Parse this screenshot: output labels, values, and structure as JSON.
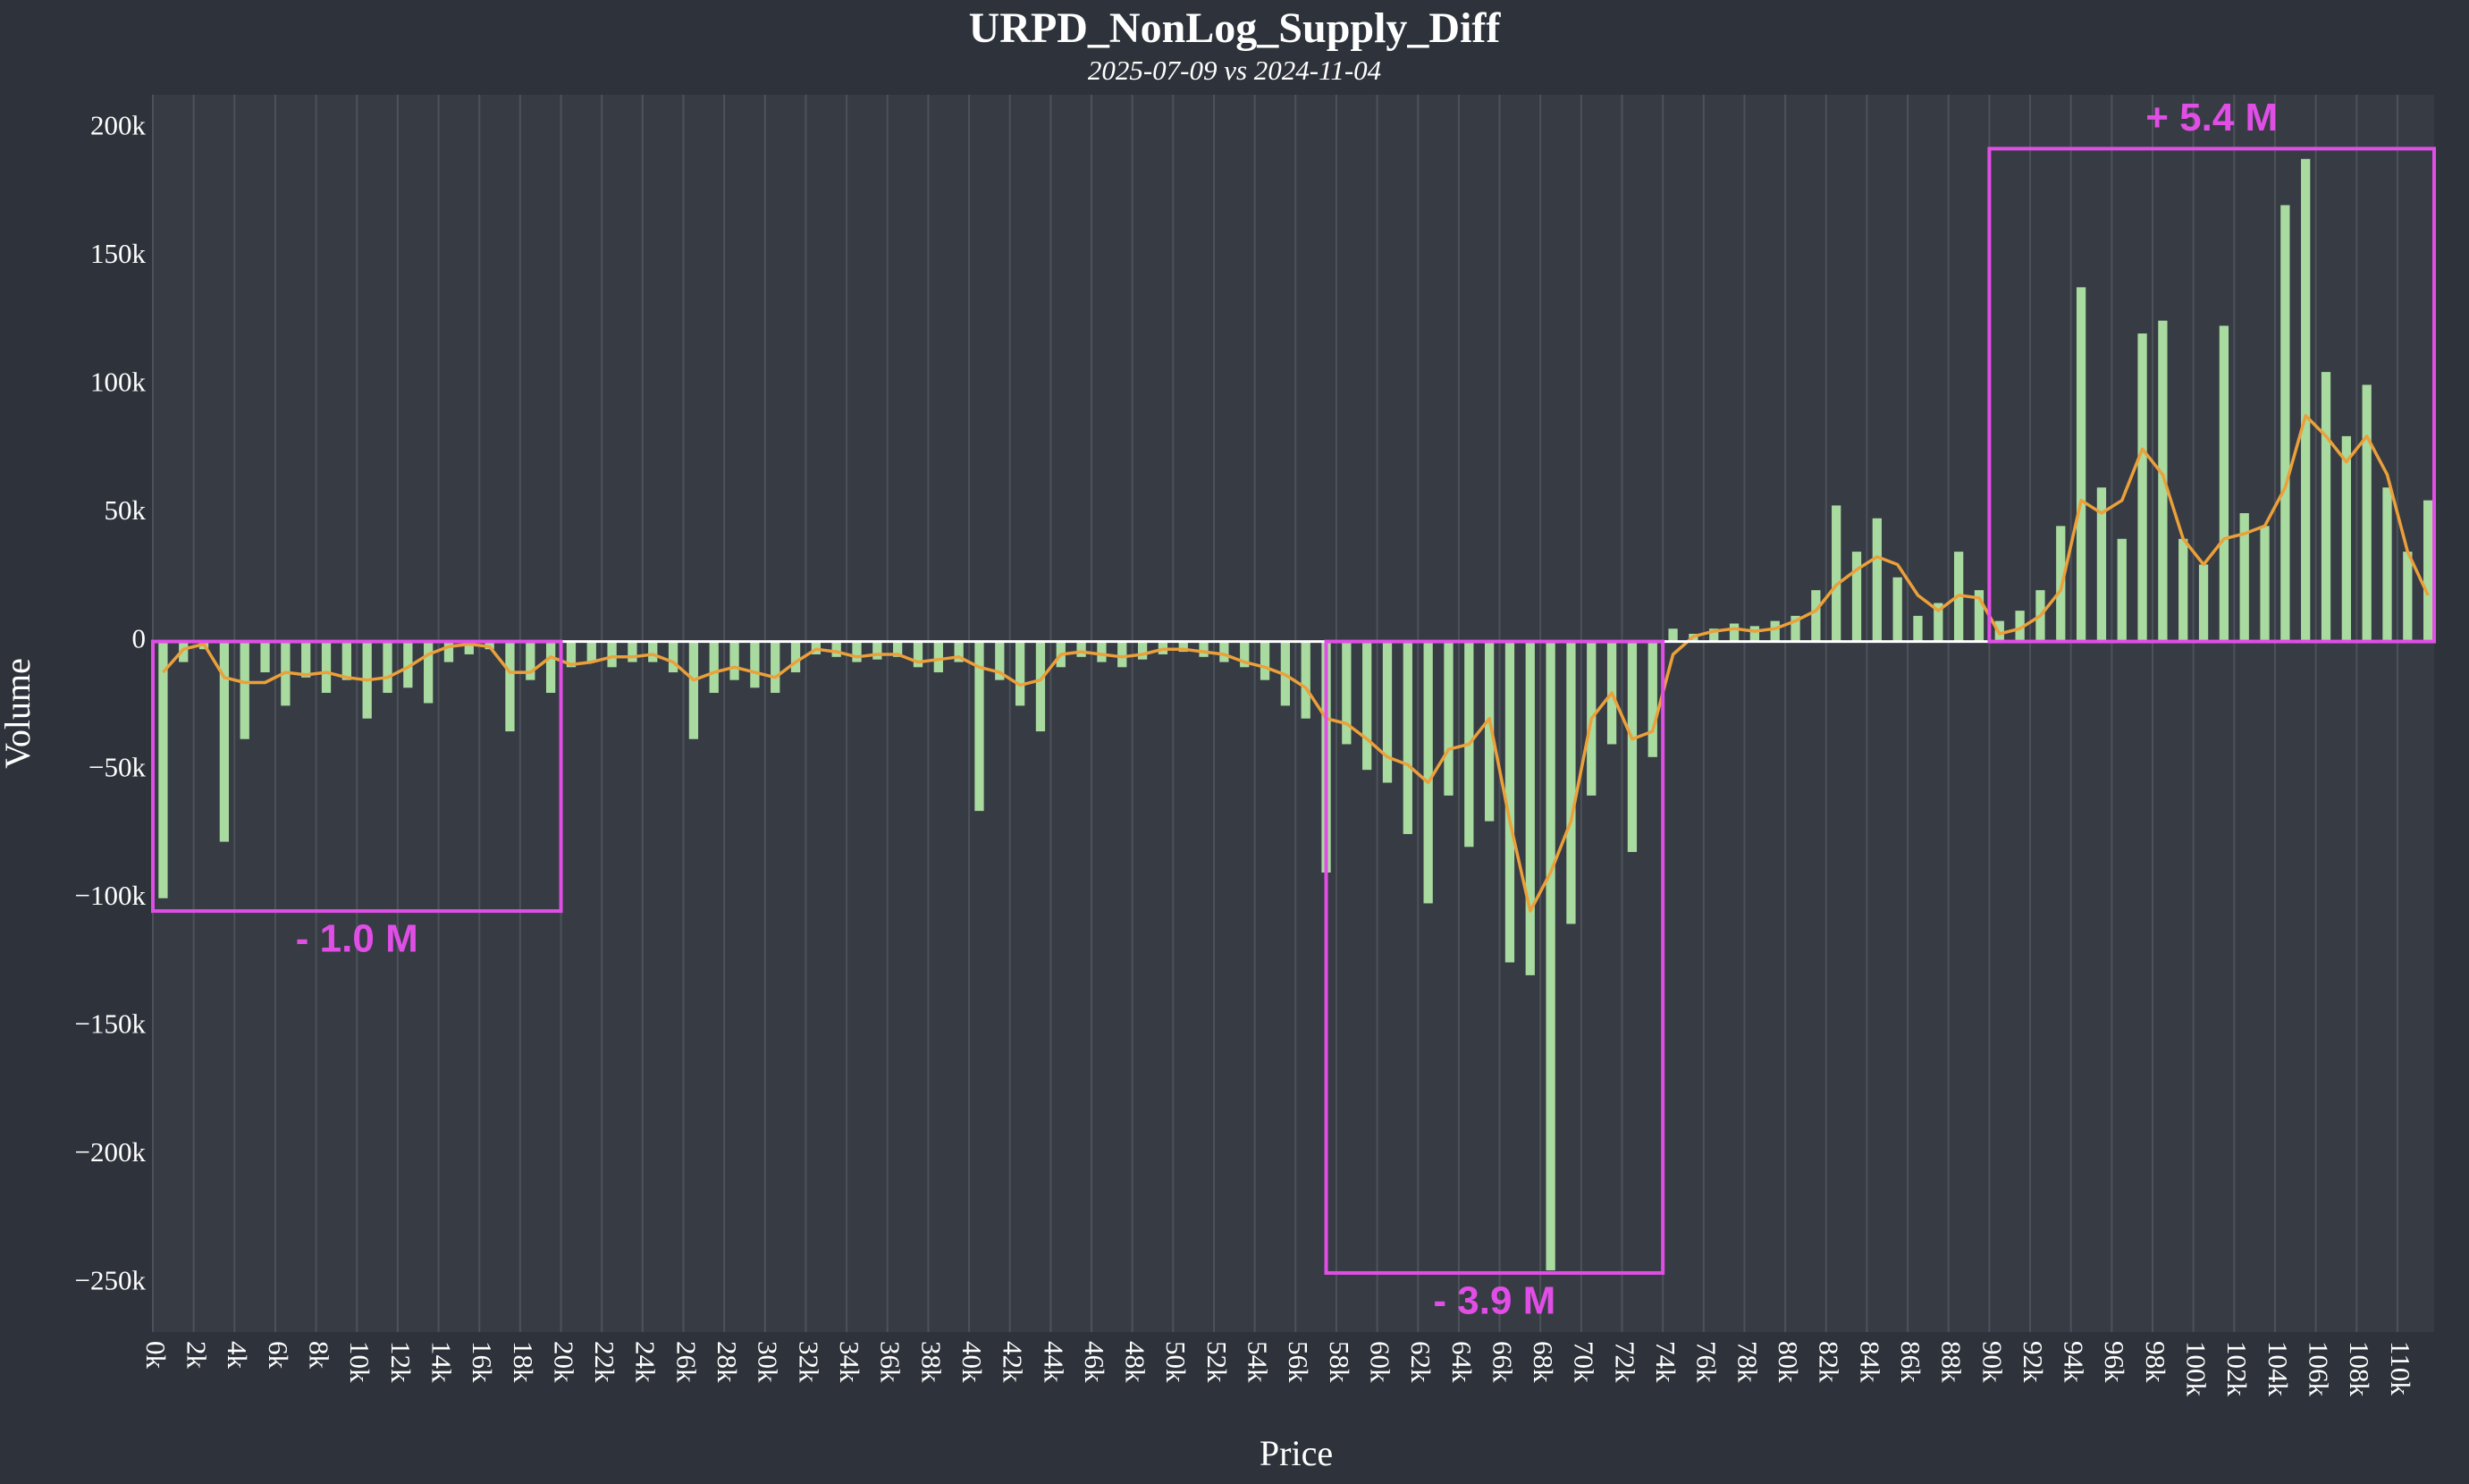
{
  "chart_data": {
    "type": "bar",
    "title": "URPD_NonLog_Supply_Diff",
    "subtitle": "2025-07-09 vs 2024-11-04",
    "x_label": "Price",
    "y_label": "Volume",
    "x": [
      500,
      1500,
      2500,
      3500,
      4500,
      5500,
      6500,
      7500,
      8500,
      9500,
      10500,
      11500,
      12500,
      13500,
      14500,
      15500,
      16500,
      17500,
      18500,
      19500,
      20500,
      21500,
      22500,
      23500,
      24500,
      25500,
      26500,
      27500,
      28500,
      29500,
      30500,
      31500,
      32500,
      33500,
      34500,
      35500,
      36500,
      37500,
      38500,
      39500,
      40500,
      41500,
      42500,
      43500,
      44500,
      45500,
      46500,
      47500,
      48500,
      49500,
      50500,
      51500,
      52500,
      53500,
      54500,
      55500,
      56500,
      57500,
      58500,
      59500,
      60500,
      61500,
      62500,
      63500,
      64500,
      65500,
      66500,
      67500,
      68500,
      69500,
      70500,
      71500,
      72500,
      73500,
      74500,
      75500,
      76500,
      77500,
      78500,
      79500,
      80500,
      81500,
      82500,
      83500,
      84500,
      85500,
      86500,
      87500,
      88500,
      89500,
      90500,
      91500,
      92500,
      93500,
      94500,
      95500,
      96500,
      97500,
      98500,
      99500,
      100500,
      101500,
      102500,
      103500,
      104500,
      105500,
      106500,
      107500,
      108500,
      109500,
      110500,
      111500
    ],
    "series": [
      {
        "type": "bar",
        "color": "#a9dba0",
        "values": [
          -100000,
          -8000,
          -3000,
          -78000,
          -38000,
          -12000,
          -25000,
          -14000,
          -20000,
          -15000,
          -30000,
          -20000,
          -18000,
          -24000,
          -8000,
          -5000,
          -3000,
          -35000,
          -15000,
          -20000,
          -10000,
          -8000,
          -10000,
          -8000,
          -8000,
          -12000,
          -38000,
          -20000,
          -15000,
          -18000,
          -20000,
          -12000,
          -5000,
          -6000,
          -8000,
          -7000,
          -6000,
          -10000,
          -12000,
          -8000,
          -66000,
          -15000,
          -25000,
          -35000,
          -10000,
          -6000,
          -8000,
          -10000,
          -7000,
          -5000,
          -4000,
          -6000,
          -8000,
          -10000,
          -15000,
          -25000,
          -30000,
          -90000,
          -40000,
          -50000,
          -55000,
          -75000,
          -102000,
          -60000,
          -80000,
          -70000,
          -125000,
          -130000,
          -245000,
          -110000,
          -60000,
          -40000,
          -82000,
          -45000,
          5000,
          3000,
          5000,
          7000,
          6000,
          8000,
          10000,
          20000,
          53000,
          35000,
          48000,
          25000,
          10000,
          15000,
          35000,
          20000,
          8000,
          12000,
          20000,
          45000,
          138000,
          60000,
          40000,
          120000,
          125000,
          40000,
          30000,
          123000,
          50000,
          45000,
          170000,
          188000,
          105000,
          80000,
          100000,
          60000,
          35000,
          55000
        ]
      },
      {
        "type": "line",
        "color": "#eba03a",
        "values": [
          -12000,
          -3000,
          -1000,
          -14000,
          -16000,
          -16000,
          -12000,
          -13000,
          -12000,
          -14000,
          -15000,
          -14000,
          -10000,
          -5000,
          -2000,
          -1000,
          -2000,
          -12000,
          -12000,
          -6000,
          -9000,
          -8000,
          -6000,
          -6000,
          -5000,
          -8000,
          -15000,
          -12000,
          -10000,
          -12000,
          -14000,
          -8000,
          -3000,
          -4000,
          -6000,
          -5000,
          -5000,
          -8000,
          -7000,
          -6000,
          -10000,
          -12000,
          -17000,
          -15000,
          -5000,
          -4000,
          -5000,
          -6000,
          -5000,
          -3000,
          -3000,
          -4000,
          -5000,
          -8000,
          -10000,
          -13000,
          -18000,
          -30000,
          -32000,
          -38000,
          -45000,
          -48000,
          -55000,
          -42000,
          -40000,
          -30000,
          -70000,
          -105000,
          -90000,
          -70000,
          -30000,
          -20000,
          -38000,
          -35000,
          -5000,
          2000,
          4000,
          5000,
          4000,
          5000,
          8000,
          12000,
          22000,
          28000,
          33000,
          30000,
          18000,
          12000,
          18000,
          17000,
          3000,
          5000,
          10000,
          20000,
          55000,
          50000,
          55000,
          75000,
          65000,
          40000,
          30000,
          40000,
          42000,
          45000,
          60000,
          88000,
          80000,
          70000,
          80000,
          65000,
          35000,
          18000
        ]
      }
    ],
    "annotations": [
      {
        "text": "- 1.0 M",
        "xrange": [
          0,
          20000
        ],
        "yrange": [
          -105000,
          0
        ],
        "color": "#e04ee6"
      },
      {
        "text": "- 3.9 M",
        "xrange": [
          57500,
          74000
        ],
        "yrange": [
          -246000,
          0
        ],
        "color": "#e04ee6"
      },
      {
        "text": "+ 5.4 M",
        "xrange": [
          90000,
          111800
        ],
        "yrange": [
          0,
          192000
        ],
        "color": "#e04ee6"
      }
    ],
    "xlim": [
      0,
      111800
    ],
    "ylim": [
      -269000,
      213000
    ],
    "xticks": [
      {
        "value": 0,
        "label": "0k"
      },
      {
        "value": 2000,
        "label": "2k"
      },
      {
        "value": 4000,
        "label": "4k"
      },
      {
        "value": 6000,
        "label": "6k"
      },
      {
        "value": 8000,
        "label": "8k"
      },
      {
        "value": 10000,
        "label": "10k"
      },
      {
        "value": 12000,
        "label": "12k"
      },
      {
        "value": 14000,
        "label": "14k"
      },
      {
        "value": 16000,
        "label": "16k"
      },
      {
        "value": 18000,
        "label": "18k"
      },
      {
        "value": 20000,
        "label": "20k"
      },
      {
        "value": 22000,
        "label": "22k"
      },
      {
        "value": 24000,
        "label": "24k"
      },
      {
        "value": 26000,
        "label": "26k"
      },
      {
        "value": 28000,
        "label": "28k"
      },
      {
        "value": 30000,
        "label": "30k"
      },
      {
        "value": 32000,
        "label": "32k"
      },
      {
        "value": 34000,
        "label": "34k"
      },
      {
        "value": 36000,
        "label": "36k"
      },
      {
        "value": 38000,
        "label": "38k"
      },
      {
        "value": 40000,
        "label": "40k"
      },
      {
        "value": 42000,
        "label": "42k"
      },
      {
        "value": 44000,
        "label": "44k"
      },
      {
        "value": 46000,
        "label": "46k"
      },
      {
        "value": 48000,
        "label": "48k"
      },
      {
        "value": 50000,
        "label": "50k"
      },
      {
        "value": 52000,
        "label": "52k"
      },
      {
        "value": 54000,
        "label": "54k"
      },
      {
        "value": 56000,
        "label": "56k"
      },
      {
        "value": 58000,
        "label": "58k"
      },
      {
        "value": 60000,
        "label": "60k"
      },
      {
        "value": 62000,
        "label": "62k"
      },
      {
        "value": 64000,
        "label": "64k"
      },
      {
        "value": 66000,
        "label": "66k"
      },
      {
        "value": 68000,
        "label": "68k"
      },
      {
        "value": 70000,
        "label": "70k"
      },
      {
        "value": 72000,
        "label": "72k"
      },
      {
        "value": 74000,
        "label": "74k"
      },
      {
        "value": 76000,
        "label": "76k"
      },
      {
        "value": 78000,
        "label": "78k"
      },
      {
        "value": 80000,
        "label": "80k"
      },
      {
        "value": 82000,
        "label": "82k"
      },
      {
        "value": 84000,
        "label": "84k"
      },
      {
        "value": 86000,
        "label": "86k"
      },
      {
        "value": 88000,
        "label": "88k"
      },
      {
        "value": 90000,
        "label": "90k"
      },
      {
        "value": 92000,
        "label": "92k"
      },
      {
        "value": 94000,
        "label": "94k"
      },
      {
        "value": 96000,
        "label": "96k"
      },
      {
        "value": 98000,
        "label": "98k"
      },
      {
        "value": 100000,
        "label": "100k"
      },
      {
        "value": 102000,
        "label": "102k"
      },
      {
        "value": 104000,
        "label": "104k"
      },
      {
        "value": 106000,
        "label": "106k"
      },
      {
        "value": 108000,
        "label": "108k"
      },
      {
        "value": 110000,
        "label": "110k"
      }
    ],
    "yticks": [
      {
        "value": 200000,
        "label": "200k"
      },
      {
        "value": 150000,
        "label": "150k"
      },
      {
        "value": 100000,
        "label": "100k"
      },
      {
        "value": 50000,
        "label": "50k"
      },
      0,
      {
        "value": -50000,
        "label": "−50k"
      },
      {
        "value": -100000,
        "label": "−100k"
      },
      {
        "value": -150000,
        "label": "−150k"
      },
      {
        "value": -200000,
        "label": "−200k"
      },
      {
        "value": -250000,
        "label": "−250k"
      }
    ],
    "grid": true
  }
}
